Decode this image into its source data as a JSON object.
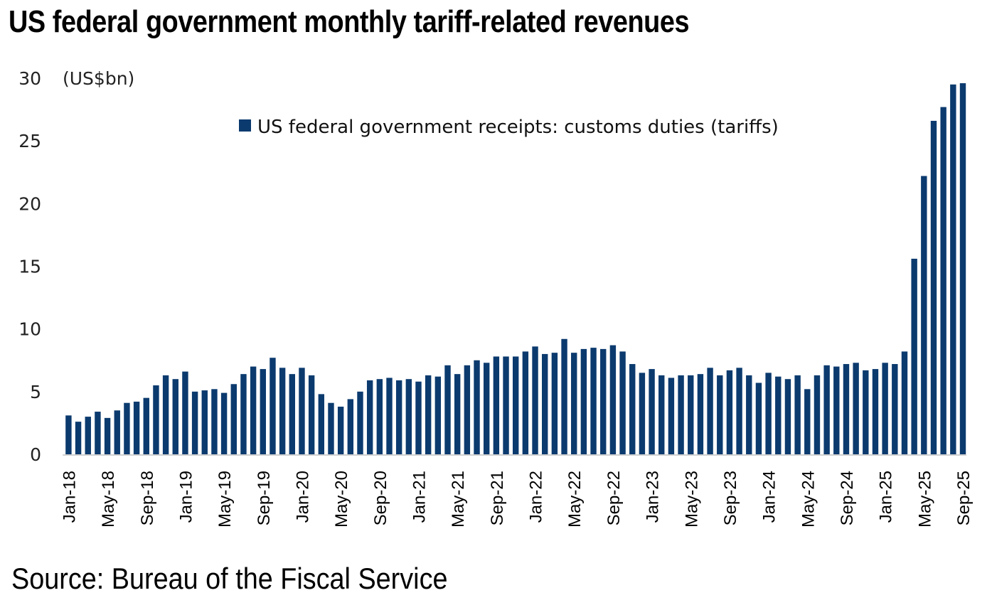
{
  "chart_data": {
    "type": "bar",
    "title": "US federal government monthly tariff-related revenues",
    "unit_label": "(US$bn)",
    "xlabel": "",
    "ylabel": "US$bn",
    "ylim": [
      0,
      30
    ],
    "yticks": [
      0,
      5,
      10,
      15,
      20,
      25,
      30
    ],
    "grid": false,
    "legend": {
      "position": "top-center",
      "entries": [
        "US federal government receipts: customs duties (tariffs)"
      ]
    },
    "source": "Source: Bureau of the Fiscal Service",
    "colors": {
      "bar": "#0b3a6e",
      "axis": "#d0d0d0"
    },
    "xtick_labels": [
      "Jan-18",
      "May-18",
      "Sep-18",
      "Jan-19",
      "May-19",
      "Sep-19",
      "Jan-20",
      "May-20",
      "Sep-20",
      "Jan-21",
      "May-21",
      "Sep-21",
      "Jan-22",
      "May-22",
      "Sep-22",
      "Jan-23",
      "May-23",
      "Sep-23",
      "Jan-24",
      "May-24",
      "Sep-24",
      "Jan-25",
      "May-25",
      "Sep-25"
    ],
    "xtick_every": 4,
    "categories": [
      "Jan-18",
      "Feb-18",
      "Mar-18",
      "Apr-18",
      "May-18",
      "Jun-18",
      "Jul-18",
      "Aug-18",
      "Sep-18",
      "Oct-18",
      "Nov-18",
      "Dec-18",
      "Jan-19",
      "Feb-19",
      "Mar-19",
      "Apr-19",
      "May-19",
      "Jun-19",
      "Jul-19",
      "Aug-19",
      "Sep-19",
      "Oct-19",
      "Nov-19",
      "Dec-19",
      "Jan-20",
      "Feb-20",
      "Mar-20",
      "Apr-20",
      "May-20",
      "Jun-20",
      "Jul-20",
      "Aug-20",
      "Sep-20",
      "Oct-20",
      "Nov-20",
      "Dec-20",
      "Jan-21",
      "Feb-21",
      "Mar-21",
      "Apr-21",
      "May-21",
      "Jun-21",
      "Jul-21",
      "Aug-21",
      "Sep-21",
      "Oct-21",
      "Nov-21",
      "Dec-21",
      "Jan-22",
      "Feb-22",
      "Mar-22",
      "Apr-22",
      "May-22",
      "Jun-22",
      "Jul-22",
      "Aug-22",
      "Sep-22",
      "Oct-22",
      "Nov-22",
      "Dec-22",
      "Jan-23",
      "Feb-23",
      "Mar-23",
      "Apr-23",
      "May-23",
      "Jun-23",
      "Jul-23",
      "Aug-23",
      "Sep-23",
      "Oct-23",
      "Nov-23",
      "Dec-23",
      "Jan-24",
      "Feb-24",
      "Mar-24",
      "Apr-24",
      "May-24",
      "Jun-24",
      "Jul-24",
      "Aug-24",
      "Sep-24",
      "Oct-24",
      "Nov-24",
      "Dec-24",
      "Jan-25",
      "Feb-25",
      "Mar-25",
      "Apr-25",
      "May-25",
      "Jun-25",
      "Jul-25",
      "Aug-25",
      "Sep-25"
    ],
    "series": [
      {
        "name": "US federal government receipts: customs duties (tariffs)",
        "values": [
          3.1,
          2.6,
          3.0,
          3.4,
          2.9,
          3.5,
          4.1,
          4.2,
          4.5,
          5.5,
          6.3,
          6.0,
          6.6,
          5.0,
          5.1,
          5.2,
          4.9,
          5.6,
          6.4,
          7.0,
          6.8,
          7.7,
          6.9,
          6.4,
          6.9,
          6.3,
          4.8,
          4.1,
          3.8,
          4.4,
          5.0,
          5.9,
          6.0,
          6.1,
          5.9,
          6.0,
          5.8,
          6.3,
          6.2,
          7.1,
          6.4,
          7.1,
          7.5,
          7.3,
          7.8,
          7.8,
          7.8,
          8.2,
          8.6,
          8.0,
          8.1,
          9.2,
          8.1,
          8.4,
          8.5,
          8.4,
          8.7,
          8.2,
          7.2,
          6.5,
          6.8,
          6.3,
          6.1,
          6.3,
          6.3,
          6.4,
          6.9,
          6.3,
          6.7,
          6.9,
          6.3,
          5.7,
          6.5,
          6.2,
          6.0,
          6.3,
          5.2,
          6.3,
          7.1,
          7.0,
          7.2,
          7.3,
          6.7,
          6.8,
          7.3,
          7.2,
          8.2,
          15.6,
          22.2,
          26.6,
          27.7,
          29.5,
          29.6
        ]
      }
    ]
  }
}
